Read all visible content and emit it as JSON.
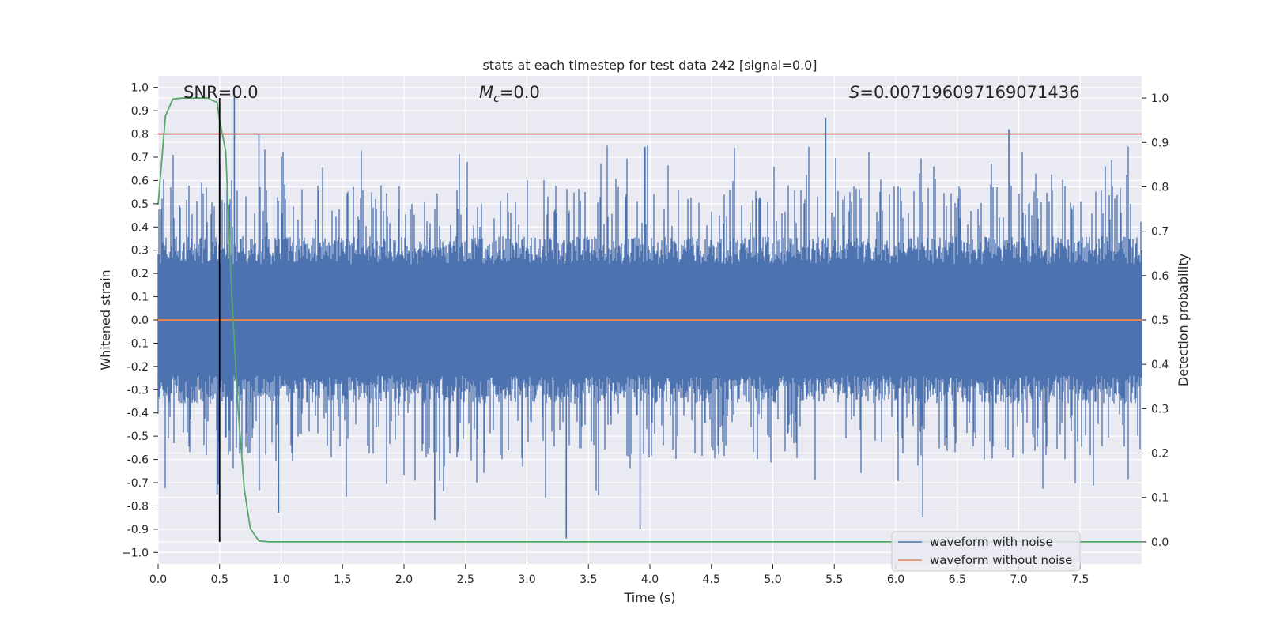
{
  "chart_data": {
    "type": "line",
    "title": "stats at each timestep for test data 242 [signal=0.0]",
    "xlabel": "Time (s)",
    "ylabel": "Whitened strain",
    "y2label": "Detection probability",
    "xlim": [
      0.0,
      8.0
    ],
    "ylim": [
      -1.05,
      1.05
    ],
    "y2lim": [
      -0.05,
      1.05
    ],
    "x_ticks": [
      0.0,
      0.5,
      1.0,
      1.5,
      2.0,
      2.5,
      3.0,
      3.5,
      4.0,
      4.5,
      5.0,
      5.5,
      6.0,
      6.5,
      7.0,
      7.5
    ],
    "x_tick_labels": [
      "0.0",
      "0.5",
      "1.0",
      "1.5",
      "2.0",
      "2.5",
      "3.0",
      "3.5",
      "4.0",
      "4.5",
      "5.0",
      "5.5",
      "6.0",
      "6.5",
      "7.0",
      "7.5"
    ],
    "y_ticks": [
      1.0,
      0.9,
      0.8,
      0.7,
      0.6,
      0.5,
      0.4,
      0.3,
      0.2,
      0.1,
      0.0,
      -0.1,
      -0.2,
      -0.3,
      -0.4,
      -0.5,
      -0.6,
      -0.7,
      -0.8,
      -0.9,
      -1.0
    ],
    "y_tick_labels": [
      "1.0",
      "0.9",
      "0.8",
      "0.7",
      "0.6",
      "0.5",
      "0.4",
      "0.3",
      "0.2",
      "0.1",
      "0.0",
      "-0.1",
      "-0.2",
      "-0.3",
      "-0.4",
      "-0.5",
      "-0.6",
      "-0.7",
      "-0.8",
      "-0.9",
      "−1.0"
    ],
    "y2_ticks": [
      1.0,
      0.9,
      0.8,
      0.7,
      0.6,
      0.5,
      0.4,
      0.3,
      0.2,
      0.1,
      0.0
    ],
    "y2_tick_labels": [
      "1.0",
      "0.9",
      "0.8",
      "0.7",
      "0.6",
      "0.5",
      "0.4",
      "0.3",
      "0.2",
      "0.1",
      "0.0"
    ],
    "grid": true,
    "legend_position": "lower-right",
    "annotations": {
      "snr": "SNR=0.0",
      "mc_symbol": "M",
      "mc_subscript": "c",
      "mc_value": "=0.0",
      "s_symbol": "S",
      "s_value": "=0.007196097169071436"
    },
    "threshold_y": 0.8,
    "marker_x": 0.5,
    "noise_series": {
      "name": "waveform with noise",
      "color": "#4c72b0",
      "envelope_typical": 0.4,
      "peaks": [
        {
          "x": 0.62,
          "y": 1.0
        },
        {
          "x": 0.82,
          "y": 0.8
        },
        {
          "x": 5.43,
          "y": 0.87
        },
        {
          "x": 6.92,
          "y": 0.82
        },
        {
          "x": 3.32,
          "y": -0.94
        },
        {
          "x": 3.92,
          "y": -0.9
        },
        {
          "x": 6.22,
          "y": -0.85
        },
        {
          "x": 2.25,
          "y": -0.86
        },
        {
          "x": 0.98,
          "y": -0.83
        },
        {
          "x": 0.48,
          "y": -0.75
        }
      ]
    },
    "clean_series": {
      "name": "waveform without noise",
      "color": "#dd8452",
      "value": 0.0
    },
    "probability_series": {
      "color": "#55a868",
      "x": [
        0.0,
        0.06,
        0.12,
        0.2,
        0.3,
        0.4,
        0.48,
        0.5,
        0.55,
        0.6,
        0.65,
        0.7,
        0.75,
        0.82,
        0.9,
        1.2,
        8.0
      ],
      "y": [
        0.76,
        0.96,
        0.998,
        1.0,
        1.0,
        1.0,
        0.99,
        0.95,
        0.88,
        0.55,
        0.3,
        0.12,
        0.03,
        0.002,
        0.0,
        0.0,
        0.0
      ]
    },
    "colors": {
      "background": "#eaeaf2",
      "grid": "#ffffff",
      "threshold": "#c44e52",
      "marker": "#000000"
    }
  }
}
